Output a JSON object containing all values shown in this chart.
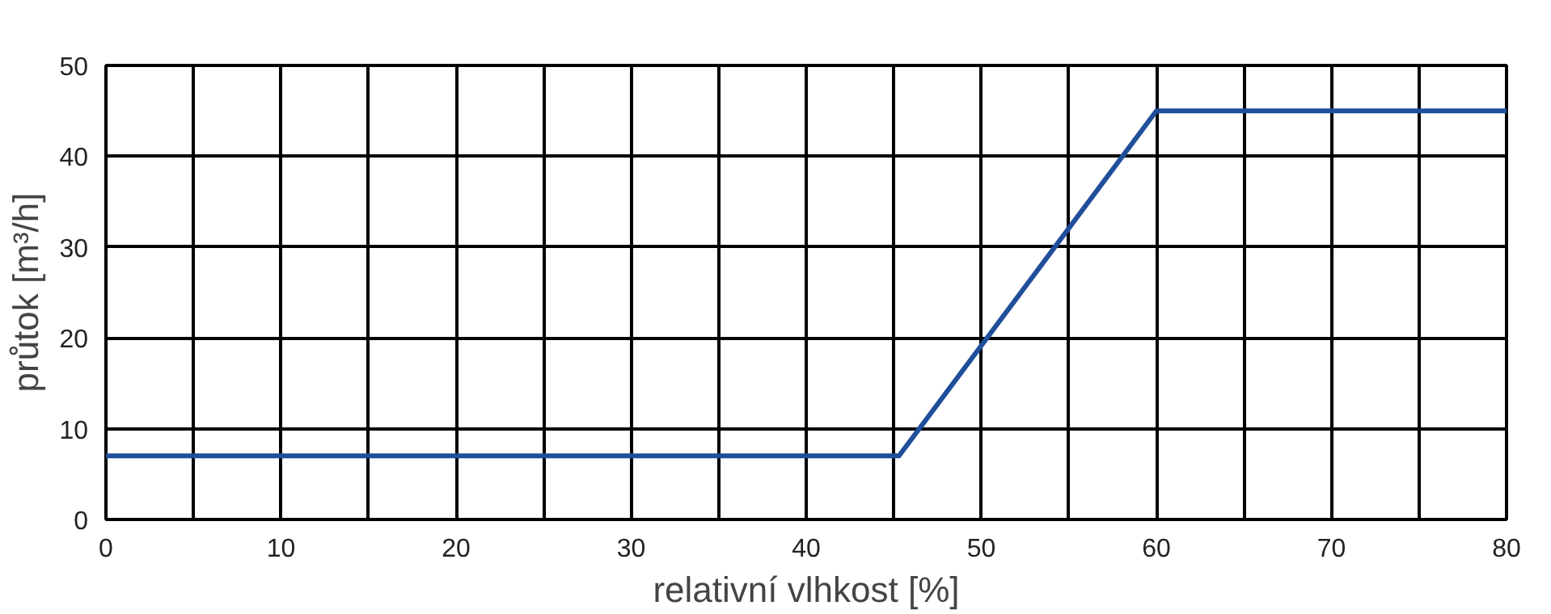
{
  "chart_data": {
    "type": "line",
    "xlabel": "relativní vlhkost [%]",
    "ylabel": "průtok [m³/h]",
    "x": [
      0,
      45.3,
      60,
      80
    ],
    "series": [
      {
        "color": "#1f4e9a",
        "values": [
          7,
          7,
          45,
          45
        ]
      }
    ],
    "xlim": [
      0,
      80
    ],
    "ylim": [
      0,
      50
    ],
    "xticks": [
      0,
      {
        "value": 5,
        "label": null
      },
      10,
      {
        "value": 15,
        "label": null
      },
      20,
      {
        "value": 25,
        "label": null
      },
      30,
      {
        "value": 35,
        "label": null
      },
      40,
      {
        "value": 45,
        "label": null
      },
      50,
      {
        "value": 55,
        "label": null
      },
      60,
      {
        "value": 65,
        "label": null
      },
      70,
      {
        "value": 75,
        "label": null
      },
      80
    ],
    "yticks": [
      0,
      10,
      20,
      30,
      40,
      50
    ],
    "grid": true,
    "marker": "none",
    "line_style": "solid"
  }
}
